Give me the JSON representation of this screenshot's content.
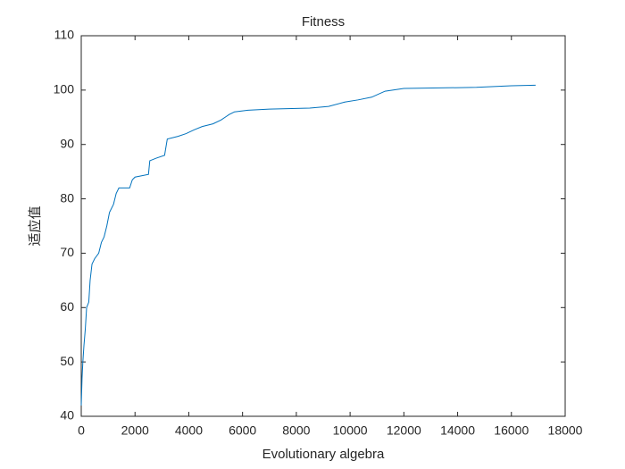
{
  "chart_data": {
    "type": "line",
    "title": "Fitness",
    "x_label": "Evolutionary algebra",
    "y_label": "适应值",
    "x": [
      0,
      30,
      60,
      100,
      150,
      200,
      280,
      330,
      400,
      500,
      650,
      750,
      850,
      950,
      1050,
      1200,
      1300,
      1400,
      1800,
      1900,
      2000,
      2500,
      2550,
      2800,
      3100,
      3200,
      3600,
      3900,
      4200,
      4500,
      4900,
      5200,
      5500,
      5700,
      6200,
      7000,
      8500,
      9200,
      9800,
      10300,
      10800,
      11300,
      12000,
      14700,
      16000,
      16900
    ],
    "y": [
      42,
      47,
      50,
      53,
      56,
      60,
      61,
      65,
      68,
      69,
      70,
      72,
      73,
      75,
      77.5,
      79,
      81,
      82,
      82,
      83.5,
      84,
      84.5,
      87,
      87.5,
      88,
      91,
      91.5,
      92,
      92.7,
      93.3,
      93.8,
      94.5,
      95.5,
      96,
      96.3,
      96.5,
      96.7,
      97,
      97.8,
      98.2,
      98.7,
      99.8,
      100.3,
      100.5,
      100.8,
      100.9
    ],
    "color": "#0072bd",
    "xlim": [
      0,
      18000
    ],
    "xticks": [
      0,
      2000,
      4000,
      6000,
      8000,
      10000,
      12000,
      14000,
      16000,
      18000
    ],
    "ylim": [
      40,
      110
    ],
    "yticks": [
      40,
      50,
      60,
      70,
      80,
      90,
      100,
      110
    ],
    "grid": false
  }
}
